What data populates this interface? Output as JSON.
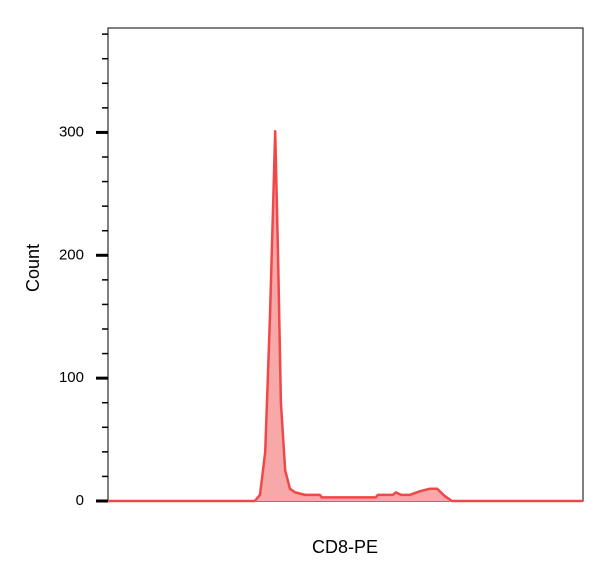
{
  "chart_data": {
    "type": "area",
    "x_label": "CD8-PE",
    "y_label": "Count",
    "x": [
      0,
      309,
      320,
      331,
      341,
      352,
      358,
      364,
      373,
      383,
      394,
      415,
      446,
      450,
      564,
      568,
      600,
      606,
      617,
      636,
      657,
      678,
      693,
      709,
      724,
      1000
    ],
    "series": [
      {
        "name": "CD8-PE",
        "color": "#f04848",
        "values": [
          0,
          0,
          5,
          40,
          150,
          301,
          200,
          80,
          25,
          10,
          7,
          5,
          5,
          3,
          3,
          5,
          5,
          7,
          5,
          5,
          8,
          10,
          10,
          4,
          0,
          0
        ]
      }
    ],
    "fill": "#f7a8a8",
    "xlim": [
      0,
      1000
    ],
    "ylim": [
      0,
      385
    ],
    "yticks": [
      0,
      100,
      200,
      300
    ],
    "yminorticks": [
      20,
      40,
      60,
      80,
      120,
      140,
      160,
      180,
      220,
      240,
      260,
      280,
      320,
      340,
      360,
      380
    ]
  }
}
